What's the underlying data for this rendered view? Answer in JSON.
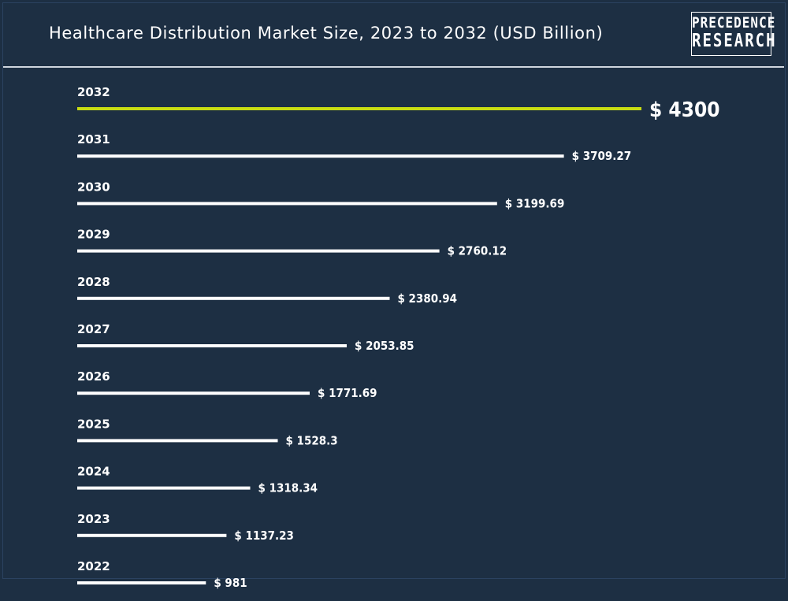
{
  "header": {
    "title": "Healthcare Distribution Market Size, 2023 to 2032 (USD Billion)"
  },
  "logo": {
    "line1": "PRECEDENCE",
    "line2": "RESEARCH"
  },
  "colors": {
    "background": "#1d2f43",
    "bar": "#ffffff",
    "highlight": "#c8dc12",
    "text": "#ffffff"
  },
  "chart_data": {
    "type": "bar",
    "orientation": "horizontal",
    "title": "Healthcare Distribution Market Size, 2023 to 2032 (USD Billion)",
    "categories": [
      "2032",
      "2031",
      "2030",
      "2029",
      "2028",
      "2027",
      "2026",
      "2025",
      "2024",
      "2023",
      "2022"
    ],
    "values": [
      4300,
      3709.27,
      3199.69,
      2760.12,
      2380.94,
      2053.85,
      1771.69,
      1528.3,
      1318.34,
      1137.23,
      981
    ],
    "labels": [
      "$ 4300",
      "$ 3709.27",
      "$ 3199.69",
      "$ 2760.12",
      "$ 2380.94",
      "$ 2053.85",
      "$ 1771.69",
      "$ 1528.3",
      "$ 1318.34",
      "$ 1137.23",
      "$ 981"
    ],
    "highlight_category": "2032",
    "xlim": [
      0,
      4300
    ],
    "grid": false,
    "legend": "none"
  }
}
